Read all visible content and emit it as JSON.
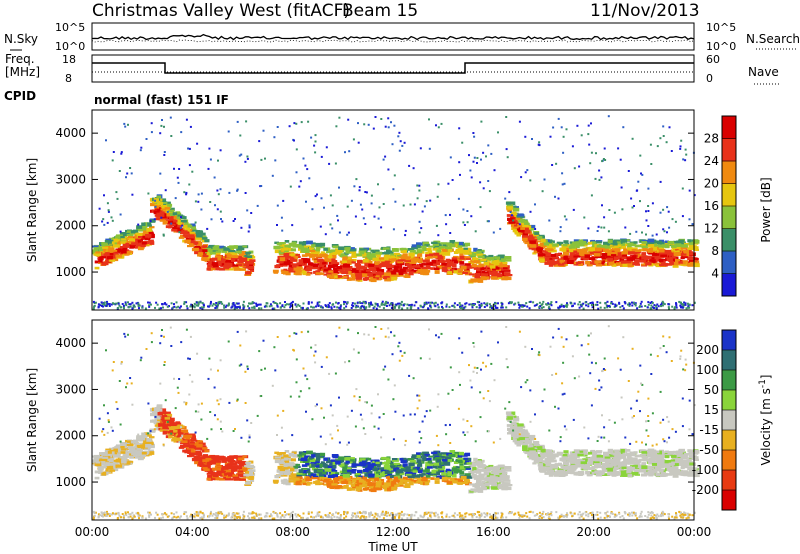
{
  "header": {
    "station": "Christmas Valley West (fitACF)",
    "beam": "Beam 15",
    "date": "11/Nov/2013"
  },
  "noise_panel": {
    "left_label": "N.Sky",
    "left_ticks": [
      "10^5",
      "10^0"
    ],
    "right_label": "N.Search",
    "right_ticks": [
      "10^5",
      "10^0"
    ]
  },
  "freq_panel": {
    "left_label_1": "Freq.",
    "left_label_2": "[MHz]",
    "left_ticks": [
      "18",
      "8"
    ],
    "right_label": "Nave",
    "right_ticks": [
      "60",
      "0"
    ]
  },
  "cpid_panel": {
    "label": "CPID",
    "text": "normal (fast) 151 IF"
  },
  "x_axis": {
    "label": "Time UT",
    "ticks": [
      "00:00",
      "04:00",
      "08:00",
      "12:00",
      "16:00",
      "20:00",
      "00:00"
    ]
  },
  "chart_data": [
    {
      "type": "heatmap",
      "name": "power",
      "ylabel": "Slant Range [km]",
      "yticks": [
        "1000",
        "2000",
        "3000",
        "4000"
      ],
      "ylim": [
        180,
        4500
      ],
      "xlim": [
        "00:00",
        "24:00"
      ],
      "colorbar": {
        "label": "Power [dB]",
        "ticks": [
          "4",
          "8",
          "12",
          "16",
          "20",
          "24",
          "28"
        ],
        "colors": [
          "#1a1ad6",
          "#2e5fc4",
          "#3a8f68",
          "#8ac23a",
          "#e6c60f",
          "#f08a10",
          "#e8321a",
          "#d90000"
        ]
      }
    },
    {
      "type": "heatmap",
      "name": "velocity",
      "ylabel": "Slant Range [km]",
      "yticks": [
        "1000",
        "2000",
        "3000",
        "4000"
      ],
      "ylim": [
        180,
        4500
      ],
      "xlim": [
        "00:00",
        "24:00"
      ],
      "colorbar": {
        "label": "Velocity [m s",
        "label_sup": "-1",
        "label_end": "]",
        "ticks": [
          "200",
          "100",
          "50",
          "15",
          "-15",
          "-50",
          "-100",
          "-200"
        ],
        "colors": [
          "#1a33c8",
          "#2f6f73",
          "#3c9a45",
          "#8ad43a",
          "#c8c8c0",
          "#e8b020",
          "#f07a10",
          "#e83a12",
          "#d90000"
        ]
      }
    }
  ]
}
